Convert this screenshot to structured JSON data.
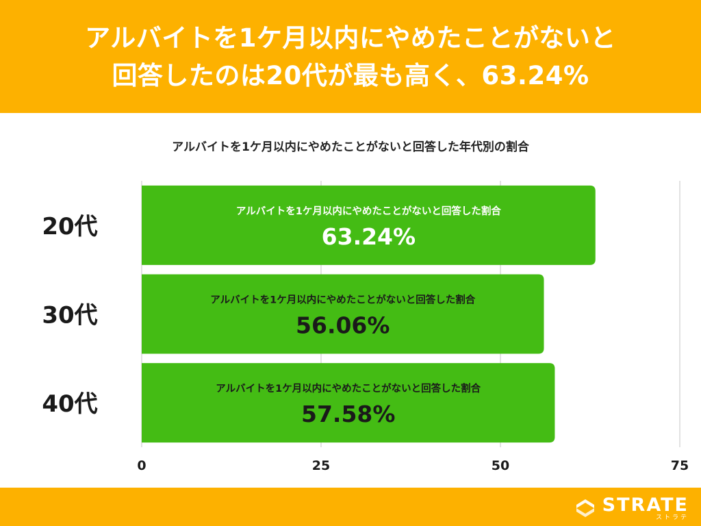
{
  "header": {
    "title_line1": "アルバイトを1ケ月以内にやめたことがないと",
    "title_line2": "回答したのは20代が最も高く、63.24%"
  },
  "chart_data": {
    "type": "bar",
    "orientation": "horizontal",
    "title": "アルバイトを1ケ月以内にやめたことがないと回答した年代別の割合",
    "categories": [
      "20代",
      "30代",
      "40代"
    ],
    "series": [
      {
        "name": "アルバイトを1ケ月以内にやめたことがないと回答した割合",
        "values": [
          63.24,
          56.06,
          57.58
        ],
        "value_labels": [
          "63.24%",
          "56.06%",
          "57.58%"
        ]
      }
    ],
    "bar_inner_label": "アルバイトを1ケ月以内にやめたことがないと回答した割合",
    "xlim": [
      0,
      75
    ],
    "xticks": [
      0,
      25,
      50,
      75
    ],
    "grid": true,
    "bar_color": "#44BC14"
  },
  "footer": {
    "brand": "STRATE",
    "brand_kana": "ストラテ"
  },
  "colors": {
    "accent": "#FDB100",
    "bar": "#44BC14",
    "grid": "#D9D9D9",
    "text": "#1a1a1a"
  }
}
